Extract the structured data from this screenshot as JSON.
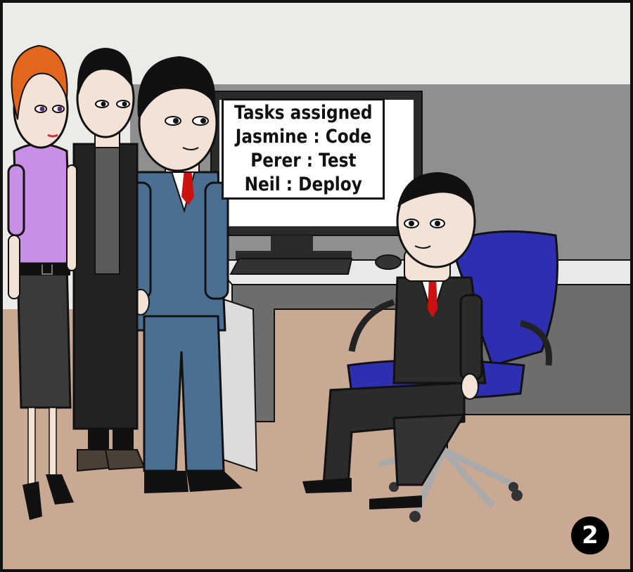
{
  "sign": {
    "lines": [
      "Tasks assigned",
      "Jasmine : Code",
      "Perer : Test",
      "Neil : Deploy"
    ]
  },
  "panel_number": "2",
  "colors": {
    "wall": "#ecebe7",
    "cubicle": "#8f8f8f",
    "desk": "#6d6d6d",
    "floor": "#c9a894",
    "chair": "#2e2fb0",
    "suit_blue": "#4a6f93",
    "suit_dark": "#2b2b2b",
    "blouse": "#c98ee6",
    "hair_red": "#e2661c"
  },
  "scene_elements": [
    "woman-character",
    "coworker-character",
    "man-blue-suit-character",
    "manager-seated-character",
    "office-chair",
    "computer-monitor",
    "keyboard",
    "mouse",
    "desk"
  ]
}
